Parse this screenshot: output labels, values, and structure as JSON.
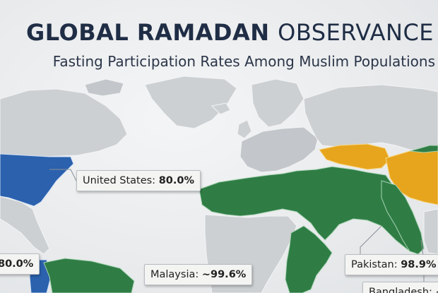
{
  "header": {
    "title_strong": "GLOBAL RAMADAN",
    "title_light": "OBSERVANCE",
    "subtitle": "Fasting Participation Rates Among Muslim Populations"
  },
  "callouts": {
    "us": {
      "label": "United States:",
      "value": "80.0%"
    },
    "west": {
      "label": "",
      "value": "80.0%"
    },
    "malaysia": {
      "label": "Malaysia:",
      "value": "~99.6%"
    },
    "pakistan": {
      "label": "Pakistan:",
      "value": "98.9%"
    },
    "bangladesh": {
      "label": "Bangladesh:",
      "value": "~"
    }
  },
  "colors": {
    "north_america_highlight": "#2b61ad",
    "muslim_majority_regions": "#2f7d45",
    "central_asia_highlight": "#e7a51d",
    "other_land": "#cdd0d3"
  }
}
